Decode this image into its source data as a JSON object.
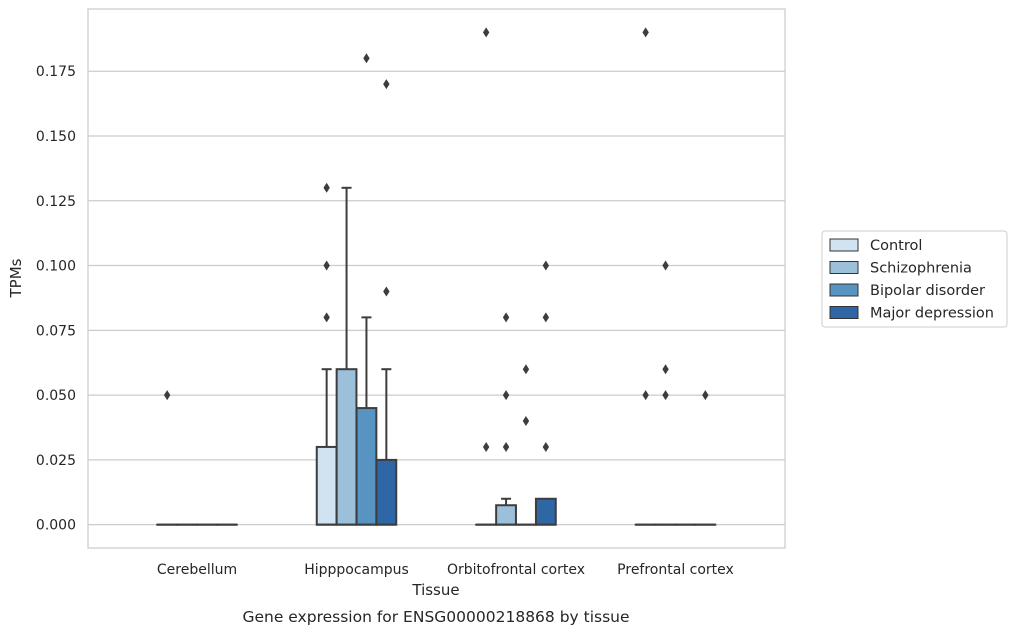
{
  "chart_data": {
    "type": "box",
    "title": "",
    "caption": "Gene expression for ENSG00000218868 by tissue",
    "xlabel": "Tissue",
    "ylabel": "TPMs",
    "ylim": [
      -0.009,
      0.199
    ],
    "yticks": [
      "0.000",
      "0.025",
      "0.050",
      "0.075",
      "0.100",
      "0.125",
      "0.150",
      "0.175"
    ],
    "yticks_values": [
      0,
      0.025,
      0.05,
      0.075,
      0.1,
      0.125,
      0.15,
      0.175
    ],
    "categories": [
      "Cerebellum",
      "Hipppocampus",
      "Orbitofrontal cortex",
      "Prefrontal cortex"
    ],
    "grid": "horizontal",
    "legend_position": "right",
    "series": [
      {
        "name": "Control",
        "color": "#d1e2f1",
        "boxes": [
          {
            "q1": 0,
            "median": 0,
            "q3": 0,
            "whisker_low": 0,
            "whisker_high": 0,
            "outliers": [
              0.05
            ]
          },
          {
            "q1": 0,
            "median": 0,
            "q3": 0.03,
            "whisker_low": 0,
            "whisker_high": 0.06,
            "outliers": [
              0.08,
              0.1,
              0.13
            ]
          },
          {
            "q1": 0,
            "median": 0,
            "q3": 0,
            "whisker_low": 0,
            "whisker_high": 0,
            "outliers": [
              0.03,
              0.19
            ]
          },
          {
            "q1": 0,
            "median": 0,
            "q3": 0,
            "whisker_low": 0,
            "whisker_high": 0,
            "outliers": [
              0.05,
              0.19
            ]
          }
        ]
      },
      {
        "name": "Schizophrenia",
        "color": "#9cc0d9",
        "boxes": [
          {
            "q1": 0,
            "median": 0,
            "q3": 0,
            "whisker_low": 0,
            "whisker_high": 0,
            "outliers": []
          },
          {
            "q1": 0,
            "median": 0,
            "q3": 0.06,
            "whisker_low": 0,
            "whisker_high": 0.13,
            "outliers": []
          },
          {
            "q1": 0,
            "median": 0,
            "q3": 0.0075,
            "whisker_low": 0,
            "whisker_high": 0.01,
            "outliers": [
              0.03,
              0.05,
              0.08
            ]
          },
          {
            "q1": 0,
            "median": 0,
            "q3": 0,
            "whisker_low": 0,
            "whisker_high": 0,
            "outliers": [
              0.05,
              0.06,
              0.1
            ]
          }
        ]
      },
      {
        "name": "Bipolar disorder",
        "color": "#5894c1",
        "boxes": [
          {
            "q1": 0,
            "median": 0,
            "q3": 0,
            "whisker_low": 0,
            "whisker_high": 0,
            "outliers": []
          },
          {
            "q1": 0,
            "median": 0,
            "q3": 0.045,
            "whisker_low": 0,
            "whisker_high": 0.08,
            "outliers": [
              0.18
            ]
          },
          {
            "q1": 0,
            "median": 0,
            "q3": 0,
            "whisker_low": 0,
            "whisker_high": 0,
            "outliers": [
              0.04,
              0.06
            ]
          },
          {
            "q1": 0,
            "median": 0,
            "q3": 0,
            "whisker_low": 0,
            "whisker_high": 0,
            "outliers": []
          }
        ]
      },
      {
        "name": "Major depression",
        "color": "#2f67a6",
        "boxes": [
          {
            "q1": 0,
            "median": 0,
            "q3": 0,
            "whisker_low": 0,
            "whisker_high": 0,
            "outliers": []
          },
          {
            "q1": 0,
            "median": 0,
            "q3": 0.025,
            "whisker_low": 0,
            "whisker_high": 0.06,
            "outliers": [
              0.09,
              0.17
            ]
          },
          {
            "q1": 0,
            "median": 0,
            "q3": 0.01,
            "whisker_low": 0,
            "whisker_high": 0.01,
            "outliers": [
              0.03,
              0.08,
              0.1
            ]
          },
          {
            "q1": 0,
            "median": 0,
            "q3": 0,
            "whisker_low": 0,
            "whisker_high": 0,
            "outliers": [
              0.05
            ]
          }
        ]
      }
    ]
  }
}
